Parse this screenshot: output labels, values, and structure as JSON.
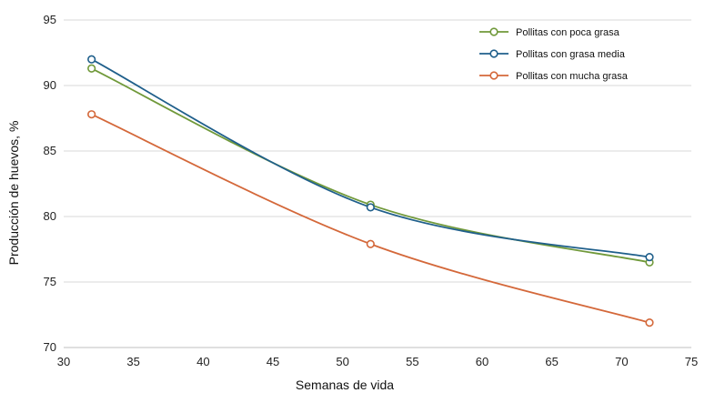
{
  "chart_data": {
    "type": "line",
    "xlabel": "Semanas de vida",
    "ylabel": "Producción de huevos, %",
    "xlim": [
      30,
      75
    ],
    "ylim": [
      70,
      95
    ],
    "x_ticks": [
      "30",
      "35",
      "40",
      "45",
      "50",
      "55",
      "60",
      "65",
      "70",
      "75"
    ],
    "y_ticks": [
      "70",
      "75",
      "80",
      "85",
      "90",
      "95"
    ],
    "grid": "horizontal",
    "legend_position": "top-right",
    "x": [
      32,
      52,
      72
    ],
    "series": [
      {
        "name": "Pollitas con poca grasa",
        "color": "#70993a",
        "values": [
          91.3,
          80.9,
          76.5
        ]
      },
      {
        "name": "Pollitas con grasa media",
        "color": "#1f5f8b",
        "values": [
          92.0,
          80.7,
          76.9
        ]
      },
      {
        "name": "Pollitas con mucha grasa",
        "color": "#d4683a",
        "values": [
          87.8,
          77.9,
          71.9
        ]
      }
    ]
  }
}
